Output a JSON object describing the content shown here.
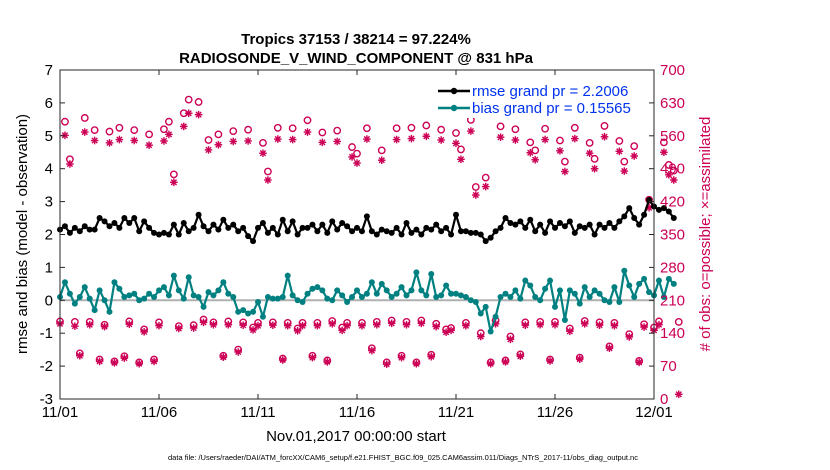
{
  "chart_data": {
    "type": "line",
    "title": "Tropics 37153 / 38214 = 97.224%",
    "subtitle": "RADIOSONDE_V_WIND_COMPONENT @ 831 hPa",
    "xlabel": "Nov.01,2017 00:00:00 start",
    "ylabel_left": "rmse and bias (model - observation)",
    "ylabel_right": "# of obs: o=possible; ×=assimilated",
    "footer": "data file: /Users/raeder/DAI/ATM_forcXX/CAM6_setup/f.e21.FHIST_BGC.f09_025.CAM6assim.011/Diags_NTrS_2017-11/obs_diag_output.nc",
    "x_ticks": [
      "11/01",
      "11/06",
      "11/11",
      "11/16",
      "11/21",
      "11/26",
      "12/01"
    ],
    "xlim": [
      0,
      30
    ],
    "ylim_left": [
      -3,
      7
    ],
    "ylim_right": [
      0,
      700
    ],
    "left_ticks": [
      "-3",
      "-2",
      "-1",
      "0",
      "1",
      "2",
      "3",
      "4",
      "5",
      "6",
      "7"
    ],
    "right_ticks": [
      "0",
      "70",
      "140",
      "210",
      "280",
      "350",
      "420",
      "490",
      "560",
      "630",
      "700"
    ],
    "colors": {
      "rmse": "#000000",
      "bias": "#008080",
      "counts": "#cc0055",
      "zero": "#b0b0b0",
      "legend_text": "#0033ee"
    },
    "legend": [
      {
        "name": "rmse grand pr = 2.2006",
        "series": "rmse"
      },
      {
        "name": "bias grand pr = 0.15565",
        "series": "bias"
      }
    ],
    "step_days": 0.25,
    "rmse_values": [
      2.15,
      2.25,
      2.05,
      2.2,
      2.1,
      2.25,
      2.15,
      2.15,
      2.5,
      2.4,
      2.25,
      2.35,
      2.2,
      2.5,
      2.35,
      2.5,
      2.1,
      2.4,
      2.2,
      2.05,
      2.0,
      2.05,
      2.0,
      2.3,
      2.0,
      2.35,
      2.1,
      2.2,
      2.6,
      2.25,
      2.1,
      2.3,
      2.15,
      2.45,
      2.2,
      2.3,
      2.1,
      2.2,
      1.95,
      1.8,
      2.2,
      2.35,
      2.05,
      2.2,
      2.0,
      2.45,
      2.1,
      2.4,
      2.0,
      2.2,
      2.2,
      2.3,
      2.1,
      2.3,
      2.05,
      2.4,
      2.15,
      2.35,
      2.25,
      2.1,
      2.2,
      2.1,
      2.55,
      2.1,
      2.0,
      2.15,
      2.1,
      2.05,
      2.2,
      2.0,
      2.35,
      2.05,
      2.15,
      2.0,
      2.2,
      2.15,
      2.3,
      2.1,
      2.2,
      2.0,
      2.6,
      2.1,
      2.1,
      2.05,
      2.05,
      2.0,
      1.8,
      1.9,
      2.1,
      2.2,
      2.5,
      2.35,
      2.3,
      2.4,
      2.2,
      2.45,
      2.1,
      2.3,
      2.05,
      2.4,
      2.2,
      2.35,
      2.25,
      2.4,
      2.05,
      2.25,
      2.2,
      2.3,
      2.0,
      2.3,
      2.2,
      2.35,
      2.2,
      2.4,
      2.55,
      2.8,
      2.5,
      2.3,
      2.6,
      3.05,
      2.85,
      2.75,
      2.8,
      2.7,
      2.5
    ],
    "bias_values": [
      0.1,
      0.55,
      0.2,
      -0.1,
      0.1,
      0.4,
      0.05,
      -0.3,
      0.3,
      0.0,
      -0.35,
      0.55,
      0.35,
      0.1,
      0.15,
      0.2,
      0.0,
      0.05,
      0.2,
      0.1,
      0.3,
      0.4,
      0.15,
      0.75,
      0.3,
      0.05,
      0.7,
      0.15,
      0.1,
      -0.2,
      0.25,
      0.15,
      0.3,
      0.55,
      0.2,
      0.1,
      -0.35,
      -0.3,
      -0.4,
      -0.35,
      -0.05,
      -0.5,
      0.1,
      0.05,
      0.05,
      0.1,
      0.75,
      0.15,
      0.0,
      -0.05,
      0.2,
      0.35,
      0.4,
      0.3,
      0.05,
      0.0,
      0.3,
      0.15,
      -0.05,
      0.1,
      0.3,
      0.1,
      0.2,
      0.55,
      0.2,
      0.5,
      0.3,
      0.1,
      0.2,
      0.4,
      0.15,
      0.3,
      0.85,
      0.3,
      0.15,
      0.8,
      0.1,
      0.15,
      0.45,
      0.2,
      0.2,
      0.15,
      0.1,
      0.0,
      -0.05,
      -0.4,
      -0.2,
      -0.95,
      -0.5,
      0.1,
      0.2,
      0.1,
      0.3,
      0.05,
      0.6,
      0.45,
      0.1,
      0.0,
      0.35,
      0.6,
      -0.2,
      0.3,
      -0.6,
      0.3,
      0.2,
      -0.1,
      0.4,
      0.1,
      0.3,
      0.2,
      0.0,
      -0.05,
      0.4,
      -0.05,
      0.9,
      0.45,
      0.1,
      0.5,
      0.65,
      0.25,
      0.15,
      0.6,
      0.1,
      0.65,
      0.5
    ],
    "possible_counts": [
      165,
      590,
      510,
      164,
      97,
      598,
      164,
      572,
      84,
      158,
      569,
      80,
      577,
      91,
      165,
      572,
      78,
      148,
      563,
      84,
      163,
      574,
      590,
      478,
      155,
      608,
      637,
      157,
      632,
      169,
      551,
      163,
      563,
      92,
      165,
      570,
      105,
      163,
      573,
      152,
      162,
      545,
      484,
      163,
      577,
      86,
      162,
      576,
      150,
      162,
      593,
      92,
      162,
      567,
      82,
      166,
      571,
      152,
      162,
      536,
      522,
      162,
      576,
      108,
      164,
      529,
      78,
      167,
      576,
      92,
      164,
      577,
      78,
      167,
      582,
      94,
      160,
      573,
      148,
      151,
      566,
      531,
      162,
      594,
      451,
      140,
      471,
      78,
      167,
      580,
      82,
      133,
      574,
      95,
      163,
      546,
      529,
      164,
      575,
      84,
      164,
      550,
      505,
      150,
      577,
      88,
      166,
      545,
      511,
      163,
      581,
      112,
      162,
      549,
      505,
      138,
      538,
      81,
      159,
      424,
      152,
      165,
      546,
      498,
      486,
      164
    ],
    "assimilated_counts": [
      160,
      561,
      500,
      155,
      92,
      568,
      158,
      550,
      80,
      154,
      545,
      77,
      552,
      87,
      159,
      550,
      75,
      143,
      540,
      80,
      156,
      549,
      563,
      461,
      150,
      580,
      608,
      151,
      605,
      163,
      530,
      158,
      541,
      89,
      158,
      548,
      100,
      157,
      549,
      147,
      156,
      523,
      466,
      157,
      553,
      83,
      156,
      552,
      145,
      156,
      568,
      88,
      156,
      546,
      79,
      160,
      548,
      146,
      156,
      515,
      502,
      156,
      553,
      103,
      158,
      508,
      74,
      161,
      552,
      88,
      158,
      554,
      75,
      161,
      559,
      90,
      154,
      551,
      142,
      146,
      544,
      510,
      156,
      570,
      434,
      133,
      452,
      75,
      160,
      557,
      79,
      127,
      551,
      91,
      157,
      524,
      509,
      158,
      552,
      81,
      158,
      528,
      484,
      144,
      554,
      85,
      160,
      523,
      490,
      157,
      558,
      108,
      156,
      527,
      485,
      132,
      517,
      78,
      153,
      407,
      146,
      158,
      525,
      477,
      466,
      10
    ]
  }
}
